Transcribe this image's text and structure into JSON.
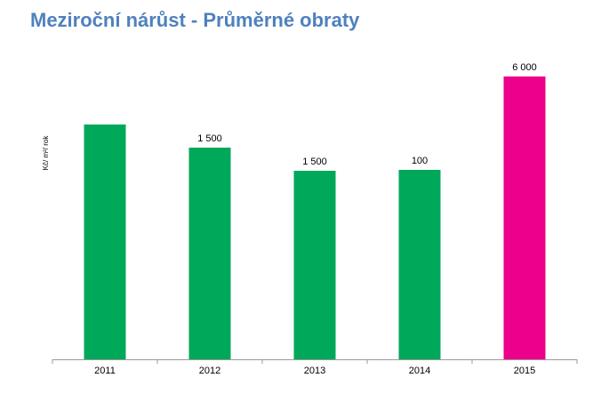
{
  "chart_data": {
    "type": "bar",
    "title": "Meziroční nárůst - Průměrné obraty",
    "y_label": "Kč/ m²/ rok",
    "categories": [
      "2011",
      "2012",
      "2013",
      "2014",
      "2015"
    ],
    "values": [
      264,
      238,
      212,
      213,
      318
    ],
    "bar_labels": [
      null,
      "1 500",
      "1 500",
      "100",
      "6 000"
    ],
    "colors": [
      "#00a859",
      "#00a859",
      "#00a859",
      "#00a859",
      "#ec008c"
    ],
    "ylim": [
      0,
      330
    ]
  }
}
